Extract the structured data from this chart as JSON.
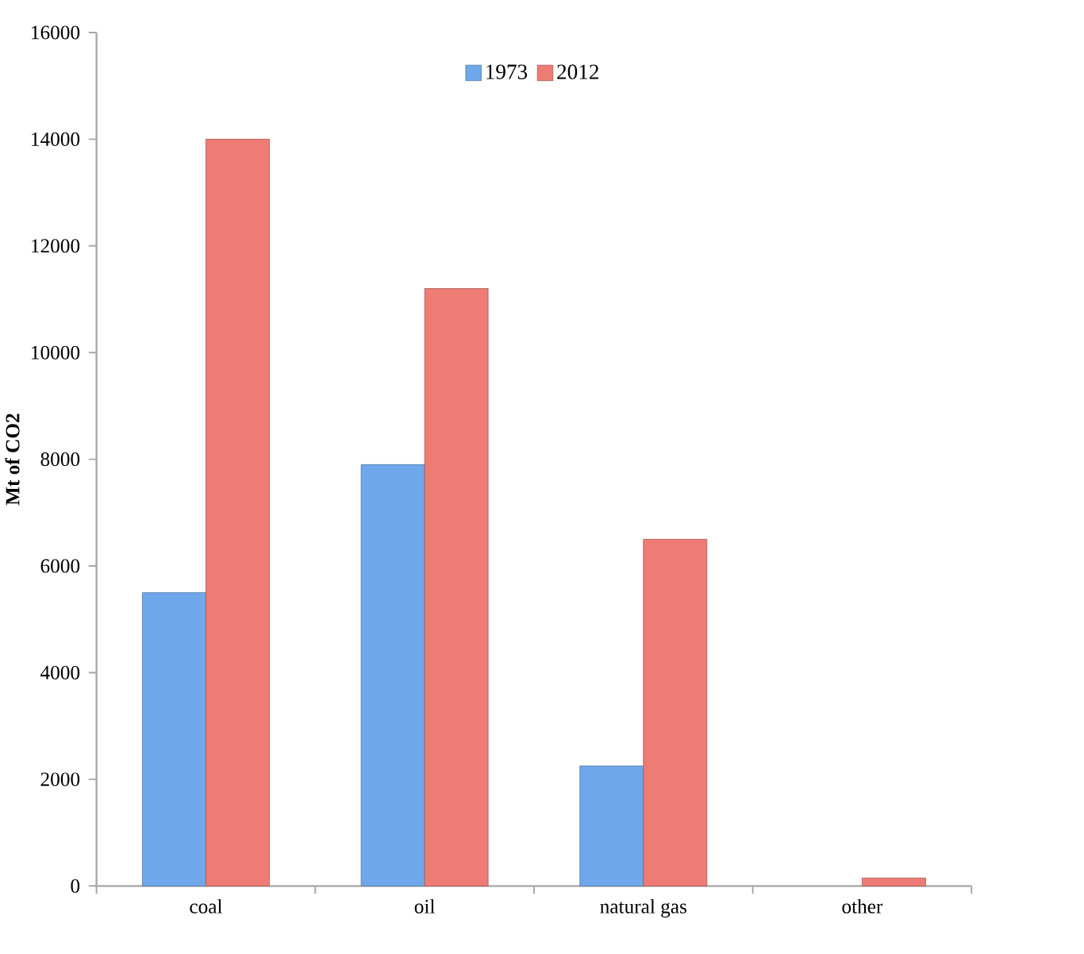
{
  "chart_data": {
    "type": "bar",
    "ylabel": "Mt of CO2",
    "categories": [
      "coal",
      "oil",
      "natural gas",
      "other"
    ],
    "series": [
      {
        "name": "1973",
        "color": "#6fa8ea",
        "values": [
          5500,
          7900,
          2250,
          null
        ]
      },
      {
        "name": "2012",
        "color": "#ee7b74",
        "values": [
          14000,
          11200,
          6500,
          150
        ]
      }
    ],
    "ylim": [
      0,
      16000
    ],
    "yticks": [
      0,
      2000,
      4000,
      6000,
      8000,
      10000,
      12000,
      14000,
      16000
    ],
    "grid": false,
    "legend": "top"
  }
}
